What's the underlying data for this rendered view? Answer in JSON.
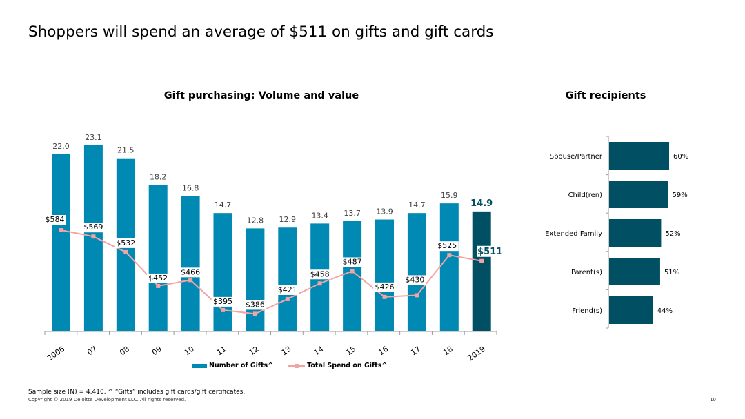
{
  "page": {
    "title": "Shoppers will spend an average of $511 on gifts and gift cards",
    "footnote": "Sample size (N) = 4,410. ^ “Gifts” includes gift cards/gift certificates.",
    "copyright": "Copyright © 2019 Deloitte Development LLC. All rights reserved.",
    "page_number": "10"
  },
  "colors": {
    "bar": "#0089b3",
    "bar_highlight": "#004f63",
    "line": "#f2a3a3",
    "recipient_bar": "#004f63",
    "axis": "#9a9a9a",
    "label": "#404040"
  },
  "chart_data": [
    {
      "type": "bar",
      "title": "Gift purchasing: Volume and value",
      "categories": [
        "2006",
        "07",
        "08",
        "09",
        "10",
        "11",
        "12",
        "13",
        "14",
        "15",
        "16",
        "17",
        "18",
        "2019"
      ],
      "series": [
        {
          "name": "Number of Gifts^",
          "type": "bar",
          "values": [
            22.0,
            23.1,
            21.5,
            18.2,
            16.8,
            14.7,
            12.8,
            12.9,
            13.4,
            13.7,
            13.9,
            14.7,
            15.9,
            14.9
          ],
          "labels": [
            "22.0",
            "23.1",
            "21.5",
            "18.2",
            "16.8",
            "14.7",
            "12.8",
            "12.9",
            "13.4",
            "13.7",
            "13.9",
            "14.7",
            "15.9",
            "14.9"
          ],
          "highlight_index": 13
        },
        {
          "name": "Total Spend on Gifts^",
          "type": "line",
          "values": [
            584,
            569,
            532,
            452,
            466,
            395,
            386,
            421,
            458,
            487,
            426,
            430,
            525,
            511
          ],
          "labels": [
            "$584",
            "$569",
            "$532",
            "$452",
            "$466",
            "$395",
            "$386",
            "$421",
            "$458",
            "$487",
            "$426",
            "$430",
            "$525",
            "$511"
          ],
          "highlight_index": 13
        }
      ],
      "legend": "bottom"
    },
    {
      "type": "bar",
      "orientation": "horizontal",
      "title": "Gift recipients",
      "categories": [
        "Spouse/Partner",
        "Child(ren)",
        "Extended Family",
        "Parent(s)",
        "Friend(s)"
      ],
      "values": [
        60,
        59,
        52,
        51,
        44
      ],
      "labels": [
        "60%",
        "59%",
        "52%",
        "51%",
        "44%"
      ],
      "unit": "%"
    }
  ]
}
